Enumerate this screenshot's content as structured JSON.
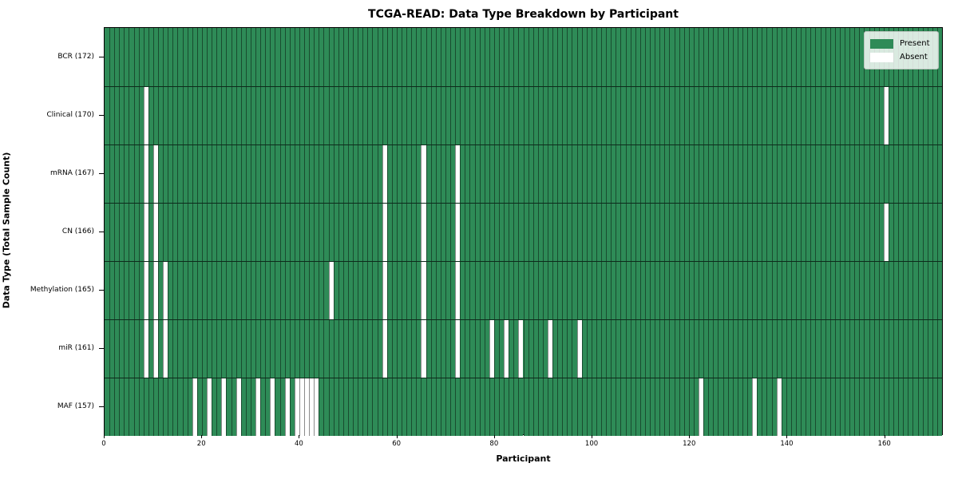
{
  "figure": {
    "title": "TCGA-READ: Data Type Breakdown by Participant",
    "xlabel": "Participant",
    "ylabel": "Data Type (Total Sample Count)"
  },
  "legend": {
    "present_label": "Present",
    "absent_label": "Absent"
  },
  "chart_data": {
    "type": "heatmap",
    "title": "TCGA-READ: Data Type Breakdown by Participant",
    "xlabel": "Participant",
    "ylabel": "Data Type (Total Sample Count)",
    "n_participants": 172,
    "x_ticks": [
      0,
      20,
      40,
      60,
      80,
      100,
      120,
      140,
      160
    ],
    "xlim": [
      0,
      172
    ],
    "grid": "per-column vertical lines and per-row horizontal lines",
    "legend_position": "upper right",
    "colors": {
      "present": "#2e8b57",
      "absent": "#ffffff",
      "cell_edge": "rgba(0,0,0,0.45)",
      "row_divider": "#0d2b1b",
      "legend_border": "#b9c4bc"
    },
    "legend": [
      {
        "label": "Present",
        "color": "#2e8b57"
      },
      {
        "label": "Absent",
        "color": "#ffffff"
      }
    ],
    "rows": [
      {
        "label": "BCR (172)",
        "data_type": "BCR",
        "total_samples": 172,
        "absent_participants": []
      },
      {
        "label": "Clinical (170)",
        "data_type": "Clinical",
        "total_samples": 170,
        "absent_participants": [
          8,
          160
        ]
      },
      {
        "label": "mRNA (167)",
        "data_type": "mRNA",
        "total_samples": 167,
        "absent_participants": [
          8,
          10,
          57,
          65,
          72
        ]
      },
      {
        "label": "CN (166)",
        "data_type": "CN",
        "total_samples": 166,
        "absent_participants": [
          8,
          10,
          57,
          65,
          72,
          160
        ]
      },
      {
        "label": "Methylation (165)",
        "data_type": "Methylation",
        "total_samples": 165,
        "absent_participants": [
          8,
          10,
          12,
          46,
          57,
          65,
          72
        ]
      },
      {
        "label": "miR (161)",
        "data_type": "miR",
        "total_samples": 161,
        "absent_participants": [
          8,
          10,
          12,
          57,
          65,
          72,
          79,
          82,
          85,
          91,
          97
        ]
      },
      {
        "label": "MAF (157)",
        "data_type": "MAF",
        "total_samples": 157,
        "absent_participants": [
          18,
          21,
          24,
          27,
          31,
          34,
          37,
          39,
          40,
          41,
          42,
          43,
          122,
          133,
          138
        ]
      }
    ]
  }
}
